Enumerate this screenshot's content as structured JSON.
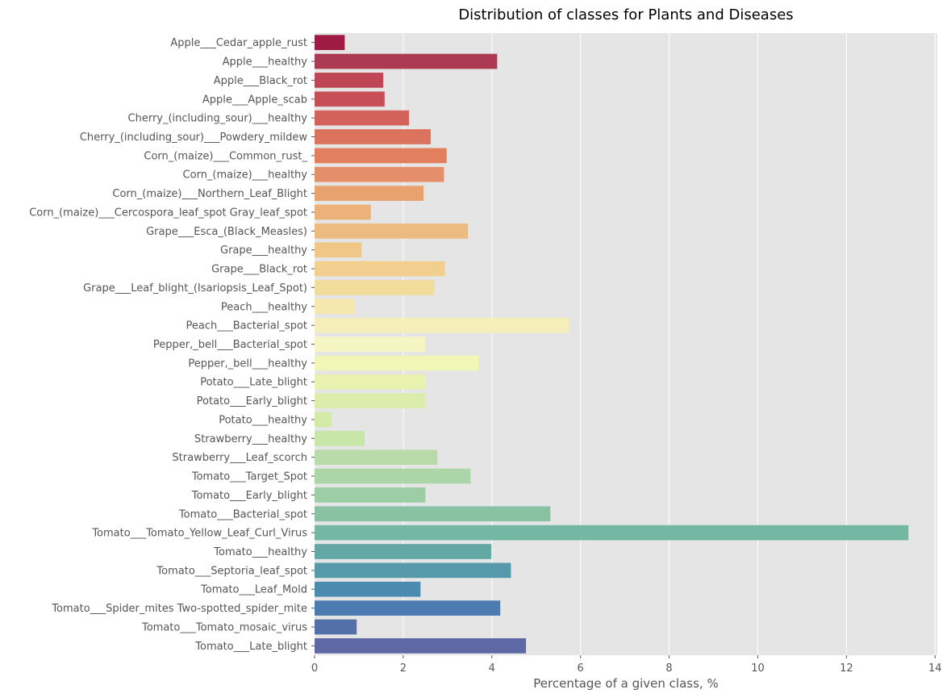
{
  "chart_data": {
    "type": "bar",
    "orientation": "horizontal",
    "title": "Distribution of classes for Plants and Diseases",
    "xlabel": "Percentage of a given class, %",
    "ylabel": "",
    "xlim": [
      0,
      14.05
    ],
    "xticks": [
      0,
      2,
      4,
      6,
      8,
      10,
      12,
      14
    ],
    "grid": true,
    "categories": [
      "Apple___Cedar_apple_rust",
      "Apple___healthy",
      "Apple___Black_rot",
      "Apple___Apple_scab",
      "Cherry_(including_sour)___healthy",
      "Cherry_(including_sour)___Powdery_mildew",
      "Corn_(maize)___Common_rust_",
      "Corn_(maize)___healthy",
      "Corn_(maize)___Northern_Leaf_Blight",
      "Corn_(maize)___Cercospora_leaf_spot Gray_leaf_spot",
      "Grape___Esca_(Black_Measles)",
      "Grape___healthy",
      "Grape___Black_rot",
      "Grape___Leaf_blight_(Isariopsis_Leaf_Spot)",
      "Peach___healthy",
      "Peach___Bacterial_spot",
      "Pepper,_bell___Bacterial_spot",
      "Pepper,_bell___healthy",
      "Potato___Late_blight",
      "Potato___Early_blight",
      "Potato___healthy",
      "Strawberry___healthy",
      "Strawberry___Leaf_scorch",
      "Tomato___Target_Spot",
      "Tomato___Early_blight",
      "Tomato___Bacterial_spot",
      "Tomato___Tomato_Yellow_Leaf_Curl_Virus",
      "Tomato___healthy",
      "Tomato___Septoria_leaf_spot",
      "Tomato___Leaf_Mold",
      "Tomato___Spider_mites Two-spotted_spider_mite",
      "Tomato___Tomato_mosaic_virus",
      "Tomato___Late_blight"
    ],
    "values": [
      0.68,
      4.12,
      1.55,
      1.58,
      2.13,
      2.62,
      2.98,
      2.92,
      2.46,
      1.27,
      3.46,
      1.06,
      2.94,
      2.7,
      0.91,
      5.74,
      2.5,
      3.7,
      2.5,
      2.5,
      0.38,
      1.13,
      2.77,
      3.52,
      2.5,
      5.32,
      13.4,
      3.99,
      4.43,
      2.39,
      4.19,
      0.95,
      4.77
    ],
    "colors": [
      "#9e1b46",
      "#ad3a53",
      "#bf4755",
      "#c74f57",
      "#d2625a",
      "#dc735e",
      "#e27f5e",
      "#e48f69",
      "#e8a26e",
      "#ecb27a",
      "#edba7f",
      "#f0c787",
      "#f1cf8e",
      "#f2dc9b",
      "#f5e7ad",
      "#f5eebb",
      "#f6f6c3",
      "#f1f5b6",
      "#e8f2ae",
      "#dcecaa",
      "#d2eba6",
      "#c7e6a8",
      "#b9dba9",
      "#acd6a8",
      "#9ccda5",
      "#89c2a3",
      "#74b8a3",
      "#64a8a6",
      "#5599aa",
      "#4a8baf",
      "#4c7bb2",
      "#5470a8",
      "#5e68a4"
    ]
  }
}
